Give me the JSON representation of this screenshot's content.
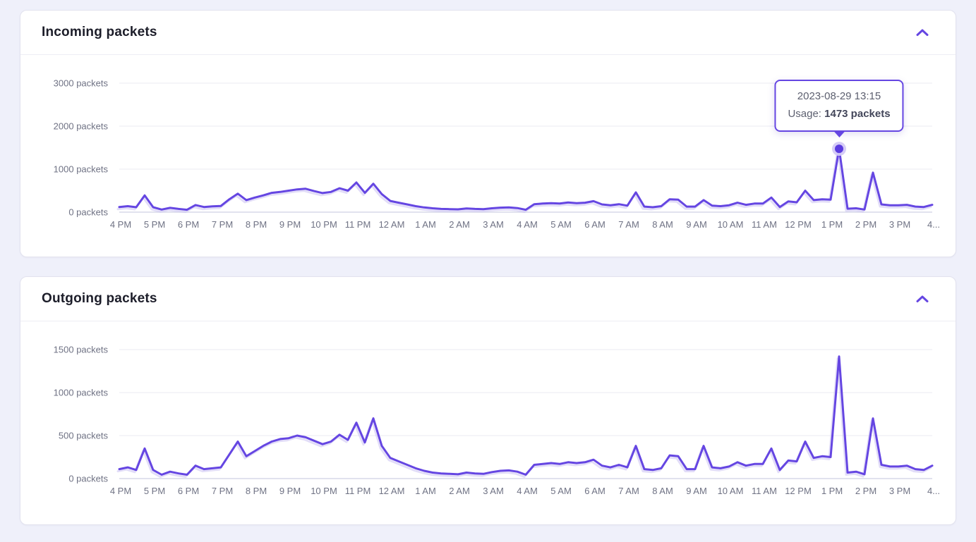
{
  "page": {
    "background": "#eff0fa"
  },
  "theme": {
    "accent": "#6546e2",
    "line_shadow": "#cbc1f3",
    "grid_line": "#ebebf2",
    "zero_line": "#d7d9e8",
    "axis_text": "#6f7284",
    "title_text": "#1c1d29",
    "card_border": "#e2e2ee",
    "dot_fill": "#5b3cdf",
    "dot_halo": "#d3c9f6"
  },
  "cards": [
    {
      "title": "Incoming packets",
      "collapse_icon": "chevron-up"
    },
    {
      "title": "Outgoing packets",
      "collapse_icon": "chevron-up"
    }
  ],
  "tooltip": {
    "date": "2023-08-29 13:15",
    "usage_label": "Usage:",
    "usage_value": "1473 packets"
  },
  "chart_data": [
    {
      "type": "line",
      "title": "Incoming packets",
      "x_tick_labels": [
        "4 PM",
        "5 PM",
        "6 PM",
        "7 PM",
        "8 PM",
        "9 PM",
        "10 PM",
        "11 PM",
        "12 AM",
        "1 AM",
        "2 AM",
        "3 AM",
        "4 AM",
        "5 AM",
        "6 AM",
        "7 AM",
        "8 AM",
        "9 AM",
        "10 AM",
        "11 AM",
        "12 PM",
        "1 PM",
        "2 PM",
        "3 PM",
        "4..."
      ],
      "x_interval_minutes": 15,
      "y_ticks": [
        "0 packets",
        "1000 packets",
        "2000 packets",
        "3000 packets"
      ],
      "y_tick_step": 1000,
      "ylim": [
        0,
        3250
      ],
      "grid": true,
      "legend": "none",
      "line_color": "#6546e2",
      "values": [
        120,
        140,
        115,
        390,
        115,
        60,
        100,
        75,
        55,
        165,
        120,
        135,
        145,
        300,
        430,
        280,
        340,
        390,
        450,
        470,
        500,
        530,
        545,
        490,
        445,
        470,
        555,
        500,
        690,
        450,
        660,
        420,
        260,
        220,
        180,
        140,
        110,
        90,
        75,
        70,
        65,
        85,
        75,
        70,
        90,
        105,
        110,
        95,
        55,
        185,
        200,
        210,
        200,
        225,
        210,
        220,
        255,
        180,
        160,
        185,
        150,
        460,
        130,
        115,
        140,
        300,
        290,
        130,
        130,
        280,
        150,
        140,
        160,
        220,
        170,
        200,
        200,
        340,
        120,
        250,
        230,
        500,
        280,
        300,
        290,
        1473,
        80,
        90,
        60,
        920,
        180,
        160,
        160,
        170,
        130,
        120,
        170
      ],
      "highlight": {
        "index": 85,
        "time": "2023-08-29 13:15",
        "value": 1473
      }
    },
    {
      "type": "line",
      "title": "Outgoing packets",
      "x_tick_labels": [
        "4 PM",
        "5 PM",
        "6 PM",
        "7 PM",
        "8 PM",
        "9 PM",
        "10 PM",
        "11 PM",
        "12 AM",
        "1 AM",
        "2 AM",
        "3 AM",
        "4 AM",
        "5 AM",
        "6 AM",
        "7 AM",
        "8 AM",
        "9 AM",
        "10 AM",
        "11 AM",
        "12 PM",
        "1 PM",
        "2 PM",
        "3 PM",
        "4..."
      ],
      "x_interval_minutes": 15,
      "y_ticks": [
        "0 packets",
        "500 packets",
        "1000 packets",
        "1500 packets"
      ],
      "y_tick_step": 500,
      "ylim": [
        0,
        1625
      ],
      "grid": true,
      "legend": "none",
      "line_color": "#6546e2",
      "values": [
        110,
        130,
        100,
        350,
        100,
        45,
        80,
        60,
        45,
        150,
        110,
        120,
        130,
        280,
        430,
        260,
        320,
        380,
        430,
        460,
        470,
        500,
        480,
        440,
        400,
        430,
        510,
        450,
        650,
        420,
        700,
        380,
        240,
        200,
        160,
        120,
        90,
        70,
        60,
        55,
        50,
        70,
        60,
        55,
        75,
        90,
        95,
        80,
        45,
        160,
        170,
        180,
        170,
        190,
        180,
        190,
        220,
        150,
        130,
        160,
        130,
        380,
        110,
        100,
        120,
        270,
        260,
        110,
        110,
        380,
        130,
        120,
        140,
        190,
        150,
        170,
        170,
        350,
        100,
        210,
        200,
        430,
        240,
        260,
        250,
        1420,
        70,
        80,
        50,
        700,
        160,
        140,
        140,
        150,
        110,
        100,
        150
      ]
    }
  ]
}
